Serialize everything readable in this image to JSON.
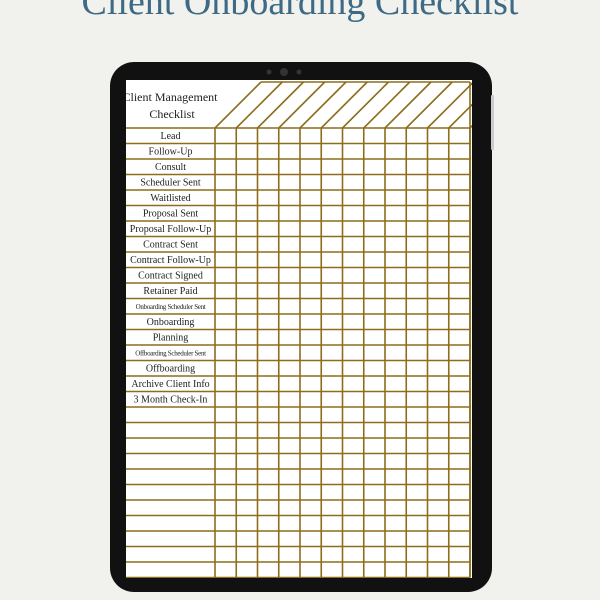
{
  "title": "Client Onboarding Checklist",
  "checklist": {
    "header": [
      "Client Management",
      "Checklist"
    ],
    "items": [
      "Lead",
      "Follow-Up",
      "Consult",
      "Scheduler Sent",
      "Waitlisted",
      "Proposal Sent",
      "Proposal Follow-Up",
      "Contract Sent",
      "Contract Follow-Up",
      "Contract Signed",
      "Retainer Paid",
      "Onboarding Scheduler Sent",
      "Onboarding",
      "Planning",
      "Offboarding Scheduler Sent",
      "Offboarding",
      "Archive Client Info",
      "3 Month Check-In"
    ]
  }
}
